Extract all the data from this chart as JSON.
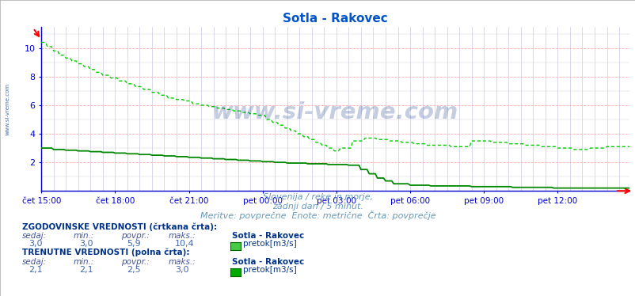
{
  "title": "Sotla - Rakovec",
  "title_color": "#0055cc",
  "bg_color": "#ffffff",
  "plot_bg_color": "#ffffff",
  "outer_bg": "#c8d8e8",
  "grid_color_major": "#ffaaaa",
  "grid_color_minor": "#bbbbdd",
  "xlim": [
    0,
    287
  ],
  "ylim": [
    0,
    11.5
  ],
  "yticks": [
    2,
    4,
    6,
    8,
    10
  ],
  "xtick_labels": [
    "čet 15:00",
    "čet 18:00",
    "čet 21:00",
    "pet 00:00",
    "pet 03:00",
    "pet 06:00",
    "pet 09:00",
    "pet 12:00"
  ],
  "xtick_positions": [
    0,
    36,
    72,
    108,
    144,
    180,
    216,
    252
  ],
  "subtitle1": "Slovenija / reke in morje,",
  "subtitle2": "zadnji dan / 5 minut.",
  "subtitle3": "Meritve: povprečne  Enote: metrične  Črta: povprečje",
  "subtitle_color": "#6699bb",
  "legend_title_hist": "ZGODOVINSKE VREDNOSTI (črtkana črta):",
  "legend_title_curr": "TRENUTNE VREDNOSTI (polna črta):",
  "col_headers": [
    "sedaj:",
    "min.:",
    "povpr.:",
    "maks.:"
  ],
  "legend_station": "Sotla - Rakovec",
  "legend_series": "pretok[m3/s]",
  "val_labels_hist": [
    "3,0",
    "3,0",
    "5,9",
    "10,4"
  ],
  "val_labels_curr": [
    "2,1",
    "2,1",
    "2,5",
    "3,0"
  ],
  "line_color_dashed": "#00cc00",
  "line_color_solid": "#008800",
  "swatch_hist_color": "#44cc44",
  "swatch_curr_color": "#00aa00",
  "watermark": "www.si-vreme.com",
  "watermark_color": "#1a3a8a",
  "watermark_alpha": 0.25,
  "axis_color": "#0000cc",
  "tick_color": "#0000cc",
  "n_points": 288
}
